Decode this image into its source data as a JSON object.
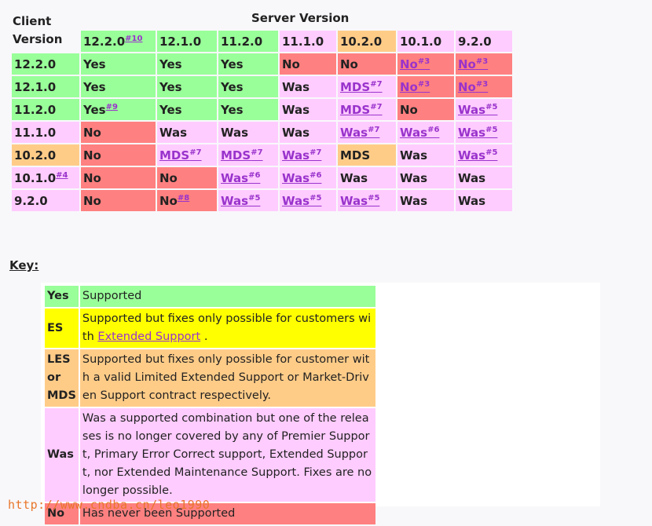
{
  "header": {
    "client": "Client Version",
    "server": "Server Version"
  },
  "colors": {
    "yes": "#99ff99",
    "no": "#ff8080",
    "was": "#ffccff",
    "mds": "#ffcc88",
    "es": "#ffff00",
    "link": "#9933cc"
  },
  "matrix": {
    "columns": [
      {
        "label": "12.2.0",
        "note": "#10"
      },
      {
        "label": "12.1.0",
        "note": ""
      },
      {
        "label": "11.2.0",
        "note": ""
      },
      {
        "label": "11.1.0",
        "note": ""
      },
      {
        "label": "10.2.0",
        "note": ""
      },
      {
        "label": "10.1.0",
        "note": ""
      },
      {
        "label": "9.2.0",
        "note": ""
      }
    ],
    "rows": [
      {
        "label": "12.2.0",
        "note": "",
        "cells": [
          {
            "text": "Yes",
            "note": "",
            "status": "yes",
            "link": false
          },
          {
            "text": "Yes",
            "note": "",
            "status": "yes",
            "link": false
          },
          {
            "text": "Yes",
            "note": "",
            "status": "yes",
            "link": false
          },
          {
            "text": "No",
            "note": "",
            "status": "no",
            "link": false
          },
          {
            "text": "No",
            "note": "",
            "status": "no",
            "link": false
          },
          {
            "text": "No",
            "note": "#3",
            "status": "no",
            "link": true
          },
          {
            "text": "No",
            "note": "#3",
            "status": "no",
            "link": true
          }
        ]
      },
      {
        "label": "12.1.0",
        "note": "",
        "cells": [
          {
            "text": "Yes",
            "note": "",
            "status": "yes",
            "link": false
          },
          {
            "text": "Yes",
            "note": "",
            "status": "yes",
            "link": false
          },
          {
            "text": "Yes",
            "note": "",
            "status": "yes",
            "link": false
          },
          {
            "text": "Was",
            "note": "",
            "status": "was",
            "link": false
          },
          {
            "text": "MDS",
            "note": "#7",
            "status": "was",
            "link": true
          },
          {
            "text": "No",
            "note": "#3",
            "status": "no",
            "link": true
          },
          {
            "text": "No",
            "note": "#3",
            "status": "no",
            "link": true
          }
        ]
      },
      {
        "label": "11.2.0",
        "note": "",
        "cells": [
          {
            "text": "Yes",
            "note": "#9",
            "status": "yes",
            "link": false
          },
          {
            "text": "Yes",
            "note": "",
            "status": "yes",
            "link": false
          },
          {
            "text": "Yes",
            "note": "",
            "status": "yes",
            "link": false
          },
          {
            "text": "Was",
            "note": "",
            "status": "was",
            "link": false
          },
          {
            "text": "MDS",
            "note": "#7",
            "status": "was",
            "link": true
          },
          {
            "text": "No",
            "note": "",
            "status": "no",
            "link": false
          },
          {
            "text": "Was",
            "note": "#5",
            "status": "was",
            "link": true
          }
        ]
      },
      {
        "label": "11.1.0",
        "note": "",
        "cells": [
          {
            "text": "No",
            "note": "",
            "status": "no",
            "link": false
          },
          {
            "text": "Was",
            "note": "",
            "status": "was",
            "link": false
          },
          {
            "text": "Was",
            "note": "",
            "status": "was",
            "link": false
          },
          {
            "text": "Was",
            "note": "",
            "status": "was",
            "link": false
          },
          {
            "text": "Was",
            "note": "#7",
            "status": "was",
            "link": true
          },
          {
            "text": "Was",
            "note": "#6",
            "status": "was",
            "link": true
          },
          {
            "text": "Was",
            "note": "#5",
            "status": "was",
            "link": true
          }
        ]
      },
      {
        "label": "10.2.0",
        "note": "",
        "cells": [
          {
            "text": "No",
            "note": "",
            "status": "no",
            "link": false
          },
          {
            "text": "MDS",
            "note": "#7",
            "status": "was",
            "link": true
          },
          {
            "text": "MDS",
            "note": "#7",
            "status": "was",
            "link": true
          },
          {
            "text": "Was",
            "note": "#7",
            "status": "was",
            "link": true
          },
          {
            "text": "MDS",
            "note": "",
            "status": "mds",
            "link": false
          },
          {
            "text": "Was",
            "note": "",
            "status": "was",
            "link": false
          },
          {
            "text": "Was",
            "note": "#5",
            "status": "was",
            "link": true
          }
        ]
      },
      {
        "label": "10.1.0",
        "note": "#4",
        "cells": [
          {
            "text": "No",
            "note": "",
            "status": "no",
            "link": false
          },
          {
            "text": "No",
            "note": "",
            "status": "no",
            "link": false
          },
          {
            "text": "Was",
            "note": "#6",
            "status": "was",
            "link": true
          },
          {
            "text": "Was",
            "note": "#6",
            "status": "was",
            "link": true
          },
          {
            "text": "Was",
            "note": "",
            "status": "was",
            "link": false
          },
          {
            "text": "Was",
            "note": "",
            "status": "was",
            "link": false
          },
          {
            "text": "Was",
            "note": "",
            "status": "was",
            "link": false
          }
        ]
      },
      {
        "label": "9.2.0",
        "note": "",
        "cells": [
          {
            "text": "No",
            "note": "",
            "status": "no",
            "link": false
          },
          {
            "text": "No",
            "note": "#8",
            "status": "no",
            "link": false
          },
          {
            "text": "Was",
            "note": "#5",
            "status": "was",
            "link": true
          },
          {
            "text": "Was",
            "note": "#5",
            "status": "was",
            "link": true
          },
          {
            "text": "Was",
            "note": "#5",
            "status": "was",
            "link": true
          },
          {
            "text": "Was",
            "note": "",
            "status": "was",
            "link": false
          },
          {
            "text": "Was",
            "note": "",
            "status": "was",
            "link": false
          }
        ]
      }
    ]
  },
  "key": {
    "title": "Key:",
    "entries": [
      {
        "code": "Yes",
        "status": "yes",
        "desc": "Supported",
        "link_text": "",
        "desc_after": ""
      },
      {
        "code": "ES",
        "status": "es",
        "desc": "Supported but fixes only possible for customers with ",
        "link_text": "Extended Support",
        "desc_after": " ."
      },
      {
        "code": "LES or MDS",
        "status": "mds",
        "desc": "Supported but fixes only possible for customer with a valid Limited Extended Support or Market-Driven Support contract respectively.",
        "link_text": "",
        "desc_after": ""
      },
      {
        "code": "Was",
        "status": "was",
        "desc": "Was a supported combination but one of the releases is no longer covered by any of Premier Support, Primary Error Correct support, Extended Support, nor Extended Maintenance Support. Fixes are no longer possible.",
        "link_text": "",
        "desc_after": ""
      },
      {
        "code": "No",
        "status": "no",
        "desc": "Has never been Supported",
        "link_text": "",
        "desc_after": ""
      }
    ]
  },
  "watermark": "http://www.cndba.cn/leo1990"
}
